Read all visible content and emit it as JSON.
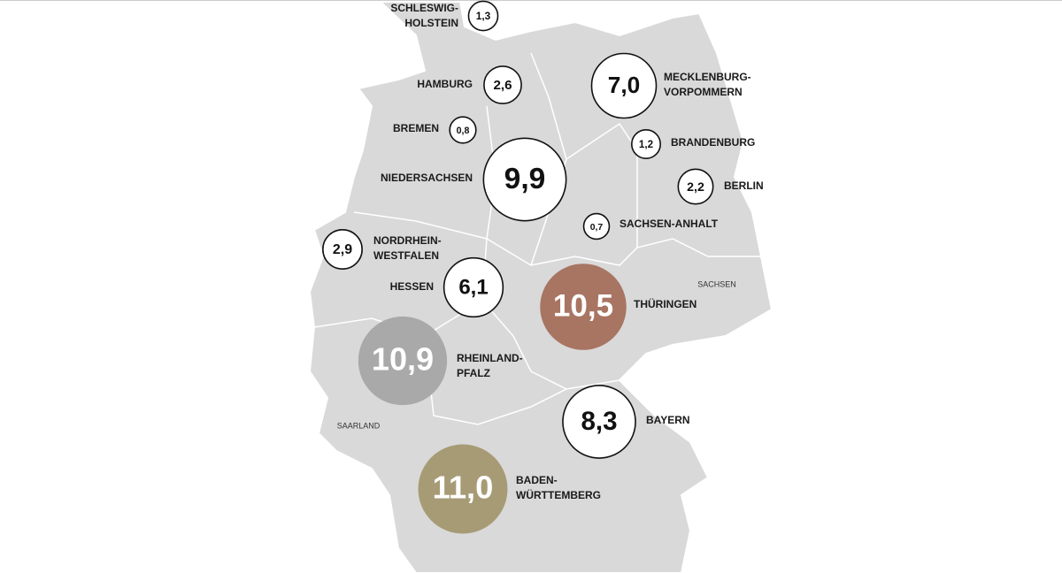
{
  "regions": [
    {
      "name": [
        "SCHLESWIG-",
        "HOLSTEIN"
      ],
      "value": 1.3,
      "label": "1,3"
    },
    {
      "name": [
        "HAMBURG"
      ],
      "value": 2.6,
      "label": "2,6"
    },
    {
      "name": [
        "BREMEN"
      ],
      "value": 0.8,
      "label": "0,8"
    },
    {
      "name": [
        "NIEDERSACHSEN"
      ],
      "value": 9.9,
      "label": "9,9"
    },
    {
      "name": [
        "NORDRHEIN-",
        "WESTFALEN"
      ],
      "value": 2.9,
      "label": "2,9"
    },
    {
      "name": [
        "HESSEN"
      ],
      "value": 6.1,
      "label": "6,1"
    },
    {
      "name": [
        "RHEINLAND-",
        "PFALZ"
      ],
      "value": 10.9,
      "label": "10,9",
      "color": "#a9a9a9"
    },
    {
      "name": [
        "BADEN-",
        "WÜRTTEMBERG"
      ],
      "value": 11.0,
      "label": "11,0",
      "color": "#a79b76"
    },
    {
      "name": [
        "BAYERN"
      ],
      "value": 8.3,
      "label": "8,3"
    },
    {
      "name": [
        "THÜRINGEN"
      ],
      "value": 10.5,
      "label": "10,5",
      "color": "#a87563"
    },
    {
      "name": [
        "SACHSEN-ANHALT"
      ],
      "value": 0.7,
      "label": "0,7"
    },
    {
      "name": [
        "BERLIN"
      ],
      "value": 2.2,
      "label": "2,2"
    },
    {
      "name": [
        "BRANDENBURG"
      ],
      "value": 1.2,
      "label": "1,2"
    },
    {
      "name": [
        "MECKLENBURG-",
        "VORPOMMERN"
      ],
      "value": 7.0,
      "label": "7,0"
    }
  ],
  "small_labels": [
    "SACHSEN",
    "SAARLAND"
  ]
}
